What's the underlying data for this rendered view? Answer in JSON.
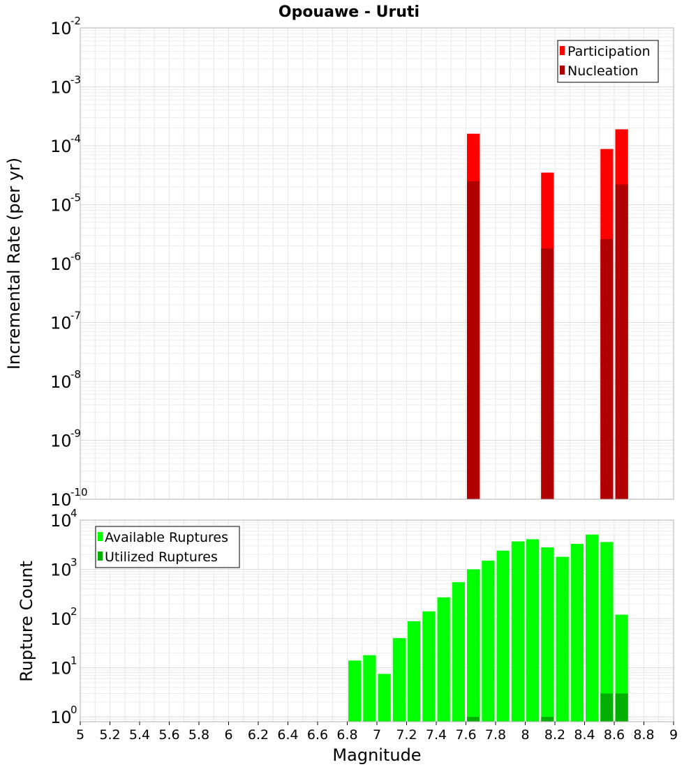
{
  "chart_data": [
    {
      "type": "bar",
      "title": "Opouawe - Uruti",
      "ylabel": "Incremental Rate (per yr)",
      "xlabel": "",
      "yscale": "log",
      "ylim": [
        1e-10,
        0.01
      ],
      "xlim": [
        5,
        9
      ],
      "grid": true,
      "legend_position": "top-right",
      "ytick_labels": [
        {
          "value": 0.01,
          "base": "10",
          "exp": "-2"
        },
        {
          "value": 0.001,
          "base": "10",
          "exp": "-3"
        },
        {
          "value": 0.0001,
          "base": "10",
          "exp": "-4"
        },
        {
          "value": 1e-05,
          "base": "10",
          "exp": "-5"
        },
        {
          "value": 1e-06,
          "base": "10",
          "exp": "-6"
        },
        {
          "value": 1e-07,
          "base": "10",
          "exp": "-7"
        },
        {
          "value": 1e-08,
          "base": "10",
          "exp": "-8"
        },
        {
          "value": 1e-09,
          "base": "10",
          "exp": "-9"
        },
        {
          "value": 1e-10,
          "base": "10",
          "exp": "-10"
        }
      ],
      "series": [
        {
          "name": "Participation",
          "color": "#ff0000",
          "x": [
            7.65,
            8.15,
            8.55,
            8.65
          ],
          "values": [
            0.00016,
            3.5e-05,
            8.8e-05,
            0.00019
          ]
        },
        {
          "name": "Nucleation",
          "color": "#b00000",
          "x": [
            7.65,
            8.15,
            8.55,
            8.65
          ],
          "values": [
            2.5e-05,
            1.8e-06,
            2.6e-06,
            2.2e-05
          ]
        }
      ]
    },
    {
      "type": "bar",
      "title": "",
      "ylabel": "Rupture Count",
      "xlabel": "Magnitude",
      "yscale": "log",
      "ylim": [
        0.8,
        10000
      ],
      "xlim": [
        5,
        9
      ],
      "grid": true,
      "legend_position": "top-left",
      "xtick_labels": [
        "5",
        "5.2",
        "5.4",
        "5.6",
        "5.8",
        "6",
        "6.2",
        "6.4",
        "6.6",
        "6.8",
        "7",
        "7.2",
        "7.4",
        "7.6",
        "7.8",
        "8",
        "8.2",
        "8.4",
        "8.6",
        "8.8",
        "9"
      ],
      "ytick_labels": [
        {
          "value": 10000.0,
          "base": "10",
          "exp": "4"
        },
        {
          "value": 1000.0,
          "base": "10",
          "exp": "3"
        },
        {
          "value": 100.0,
          "base": "10",
          "exp": "2"
        },
        {
          "value": 10.0,
          "base": "10",
          "exp": "1"
        },
        {
          "value": 1.0,
          "base": "10",
          "exp": "0"
        }
      ],
      "series": [
        {
          "name": "Available Ruptures",
          "color": "#00ff00",
          "x": [
            6.85,
            6.95,
            7.05,
            7.15,
            7.25,
            7.35,
            7.45,
            7.55,
            7.65,
            7.75,
            7.85,
            7.95,
            8.05,
            8.15,
            8.25,
            8.35,
            8.45,
            8.55,
            8.65
          ],
          "values": [
            14,
            18,
            7.5,
            40,
            88,
            140,
            270,
            550,
            1000,
            1500,
            2400,
            3700,
            4100,
            2800,
            1800,
            3300,
            5100,
            3600,
            120
          ]
        },
        {
          "name": "Utilized Ruptures",
          "color": "#00b000",
          "x": [
            7.65,
            8.15,
            8.55,
            8.65
          ],
          "values": [
            1,
            1,
            3,
            3
          ]
        }
      ]
    }
  ]
}
